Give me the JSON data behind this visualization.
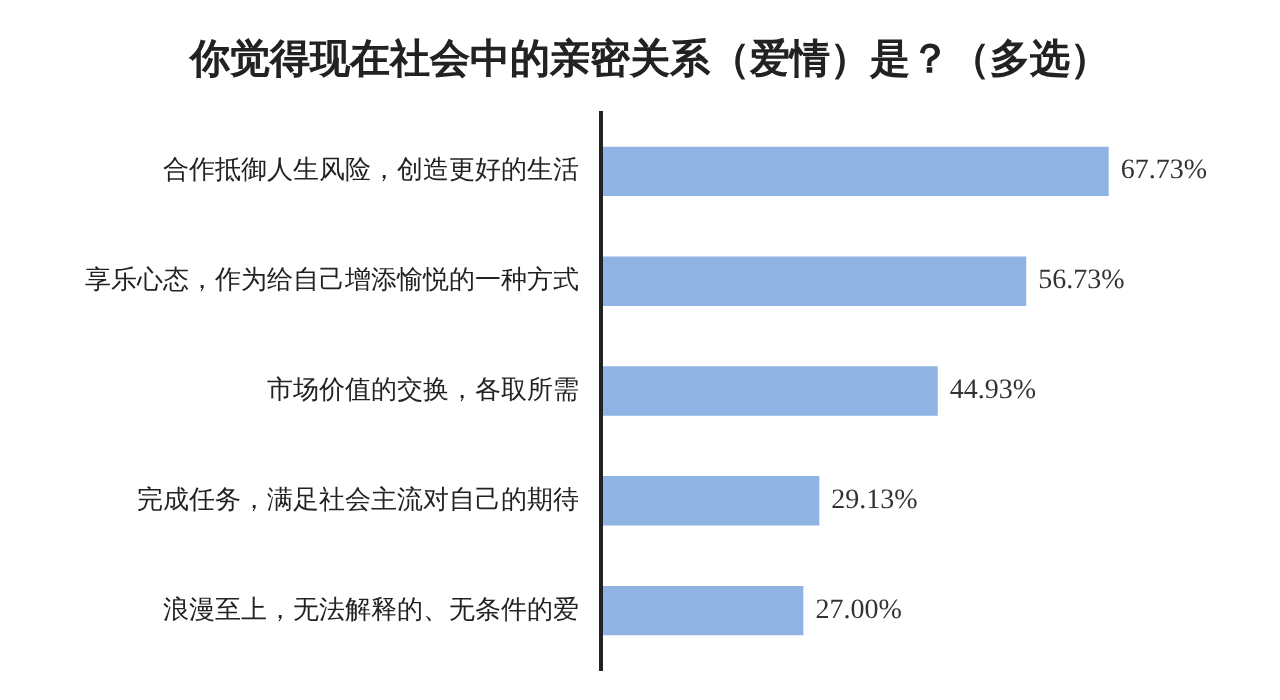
{
  "chart_data": {
    "type": "bar",
    "orientation": "horizontal",
    "title": "你觉得现在社会中的亲密关系（爱情）是？（多选）",
    "categories": [
      "合作抵御人生风险，创造更好的生活",
      "享乐心态，作为给自己增添愉悦的一种方式",
      "市场价值的交换，各取所需",
      "完成任务，满足社会主流对自己的期待",
      "浪漫至上，无法解释的、无条件的爱"
    ],
    "values": [
      67.73,
      56.73,
      44.93,
      29.13,
      27.0
    ],
    "value_labels": [
      "67.73%",
      "56.73%",
      "44.93%",
      "29.13%",
      "27.00%"
    ],
    "color": "#8fb4e3",
    "tick_labels": "y",
    "grid": false
  }
}
